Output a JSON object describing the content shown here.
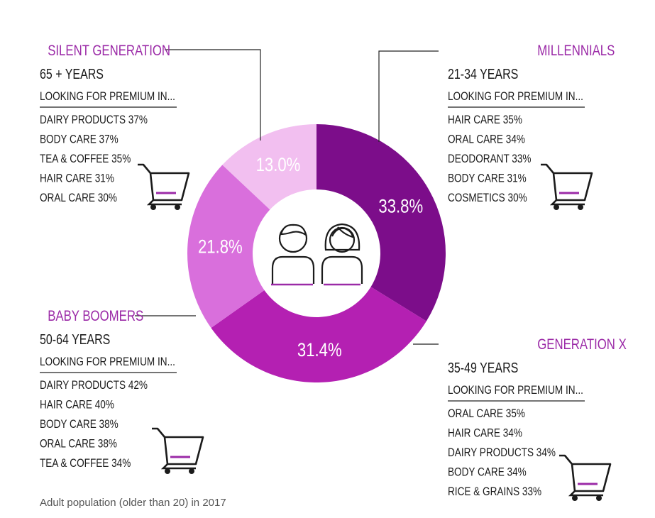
{
  "caption": "Adult population (older than 20) in 2017",
  "heading_suffix": "LOOKING FOR PREMIUM IN...",
  "colors": {
    "millennials": "#7c0d8a",
    "generation_x": "#b420b2",
    "baby_boomers": "#d96fdc",
    "silent_generation": "#f2bff0",
    "accent": "#9b2aa7"
  },
  "icons": {
    "center": "people-icon",
    "cart": "shopping-cart-icon"
  },
  "chart_data": {
    "type": "pie",
    "variant": "donut",
    "slices": [
      {
        "name": "MILLENNIALS",
        "value": 33.8,
        "label": "33.8%",
        "color": "#7c0d8a"
      },
      {
        "name": "GENERATION X",
        "value": 31.4,
        "label": "31.4%",
        "color": "#b420b2"
      },
      {
        "name": "BABY BOOMERS",
        "value": 21.8,
        "label": "21.8%",
        "color": "#d96fdc"
      },
      {
        "name": "SILENT GENERATION",
        "value": 13.0,
        "label": "13.0%",
        "color": "#f2bff0"
      }
    ]
  },
  "groups": [
    {
      "key": "silent",
      "title": "SILENT GENERATION",
      "age": "65 + YEARS",
      "heading": "LOOKING FOR PREMIUM IN...",
      "items": [
        "DAIRY PRODUCTS 37%",
        "BODY CARE 37%",
        "TEA & COFFEE 35%",
        "HAIR CARE 31%",
        "ORAL CARE 30%"
      ]
    },
    {
      "key": "millennials",
      "title": "MILLENNIALS",
      "age": "21-34 YEARS",
      "heading": "LOOKING FOR PREMIUM IN...",
      "items": [
        "HAIR CARE 35%",
        "ORAL CARE 34%",
        "DEODORANT 33%",
        "BODY CARE 31%",
        "COSMETICS 30%"
      ]
    },
    {
      "key": "boomers",
      "title": "BABY BOOMERS",
      "age": "50-64 YEARS",
      "heading": "LOOKING FOR PREMIUM IN...",
      "items": [
        "DAIRY PRODUCTS 42%",
        "HAIR CARE 40%",
        "BODY CARE 38%",
        "ORAL CARE 38%",
        "TEA & COFFEE 34%"
      ]
    },
    {
      "key": "genx",
      "title": "GENERATION X",
      "age": "35-49 YEARS",
      "heading": "LOOKING FOR PREMIUM IN...",
      "items": [
        "ORAL CARE 35%",
        "HAIR CARE 34%",
        "DAIRY PRODUCTS 34%",
        "BODY CARE 34%",
        "RICE & GRAINS 33%"
      ]
    }
  ]
}
